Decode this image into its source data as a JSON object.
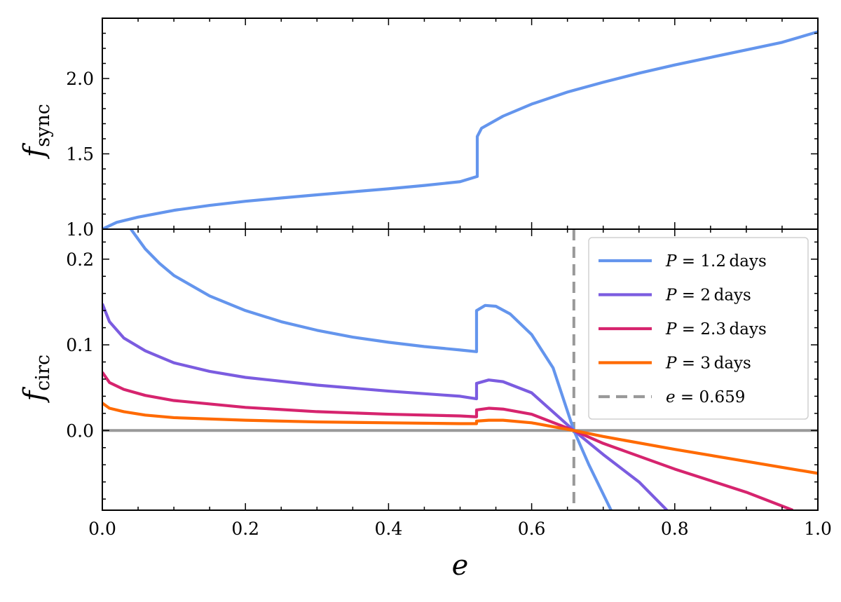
{
  "chart_data": [
    {
      "panel": "top",
      "type": "line",
      "ylabel": "f",
      "ylabel_sub": "sync",
      "xlim": [
        0,
        1
      ],
      "ylim": [
        1.0,
        2.4
      ],
      "yticks": [
        {
          "v": 1.0,
          "label": "1.0"
        },
        {
          "v": 1.5,
          "label": "1.5"
        },
        {
          "v": 2.0,
          "label": "2.0"
        }
      ],
      "series": [
        {
          "color": "#6495ED",
          "points": [
            [
              0,
              1.0
            ],
            [
              0.02,
              1.045
            ],
            [
              0.05,
              1.08
            ],
            [
              0.1,
              1.125
            ],
            [
              0.15,
              1.158
            ],
            [
              0.2,
              1.185
            ],
            [
              0.25,
              1.207
            ],
            [
              0.3,
              1.228
            ],
            [
              0.35,
              1.248
            ],
            [
              0.4,
              1.268
            ],
            [
              0.45,
              1.29
            ],
            [
              0.5,
              1.315
            ],
            [
              0.524,
              1.35
            ],
            [
              0.524,
              1.615
            ],
            [
              0.53,
              1.67
            ],
            [
              0.56,
              1.75
            ],
            [
              0.6,
              1.83
            ],
            [
              0.65,
              1.91
            ],
            [
              0.7,
              1.975
            ],
            [
              0.75,
              2.035
            ],
            [
              0.8,
              2.09
            ],
            [
              0.85,
              2.14
            ],
            [
              0.9,
              2.19
            ],
            [
              0.95,
              2.24
            ],
            [
              1.0,
              2.31
            ]
          ]
        }
      ]
    },
    {
      "panel": "bottom",
      "type": "line",
      "xlabel": "e",
      "ylabel": "f",
      "ylabel_sub": "circ",
      "xlim": [
        0,
        1
      ],
      "ylim": [
        -0.093,
        0.235
      ],
      "xticks": [
        {
          "v": 0.0,
          "label": "0.0"
        },
        {
          "v": 0.2,
          "label": "0.2"
        },
        {
          "v": 0.4,
          "label": "0.4"
        },
        {
          "v": 0.6,
          "label": "0.6"
        },
        {
          "v": 0.8,
          "label": "0.8"
        },
        {
          "v": 1.0,
          "label": "1.0"
        }
      ],
      "yticks": [
        {
          "v": 0.0,
          "label": "0.0"
        },
        {
          "v": 0.1,
          "label": "0.1"
        },
        {
          "v": 0.2,
          "label": "0.2"
        }
      ],
      "hline": {
        "y": 0.0,
        "color": "#999999"
      },
      "vline": {
        "x": 0.659,
        "color": "#999999",
        "dashed": true
      },
      "legend_position": "top-right",
      "legend": [
        {
          "var": "P",
          "value": "1.2",
          "unit": "days",
          "color": "#6495ED",
          "style": "solid"
        },
        {
          "var": "P",
          "value": "2",
          "unit": "days",
          "color": "#7B5CE0",
          "style": "solid"
        },
        {
          "var": "P",
          "value": "2.3",
          "unit": "days",
          "color": "#D6246E",
          "style": "solid"
        },
        {
          "var": "P",
          "value": "3",
          "unit": "days",
          "color": "#FF6A00",
          "style": "solid"
        },
        {
          "var": "e",
          "value": "0.659",
          "unit": "",
          "color": "#999999",
          "style": "dashed"
        }
      ],
      "series": [
        {
          "color": "#6495ED",
          "points": [
            [
              0.04,
              0.235
            ],
            [
              0.06,
              0.212
            ],
            [
              0.08,
              0.195
            ],
            [
              0.1,
              0.181
            ],
            [
              0.15,
              0.157
            ],
            [
              0.2,
              0.14
            ],
            [
              0.25,
              0.127
            ],
            [
              0.3,
              0.117
            ],
            [
              0.35,
              0.109
            ],
            [
              0.4,
              0.103
            ],
            [
              0.45,
              0.098
            ],
            [
              0.5,
              0.094
            ],
            [
              0.523,
              0.092
            ],
            [
              0.523,
              0.14
            ],
            [
              0.535,
              0.146
            ],
            [
              0.55,
              0.145
            ],
            [
              0.57,
              0.136
            ],
            [
              0.6,
              0.112
            ],
            [
              0.63,
              0.073
            ],
            [
              0.659,
              0.0
            ],
            [
              0.68,
              -0.04
            ],
            [
              0.711,
              -0.093
            ]
          ]
        },
        {
          "color": "#7B5CE0",
          "points": [
            [
              0,
              0.148
            ],
            [
              0.01,
              0.127
            ],
            [
              0.03,
              0.108
            ],
            [
              0.06,
              0.093
            ],
            [
              0.1,
              0.079
            ],
            [
              0.15,
              0.069
            ],
            [
              0.2,
              0.062
            ],
            [
              0.3,
              0.053
            ],
            [
              0.4,
              0.046
            ],
            [
              0.5,
              0.04
            ],
            [
              0.523,
              0.037
            ],
            [
              0.523,
              0.055
            ],
            [
              0.54,
              0.059
            ],
            [
              0.56,
              0.057
            ],
            [
              0.6,
              0.044
            ],
            [
              0.659,
              0.0
            ],
            [
              0.7,
              -0.028
            ],
            [
              0.75,
              -0.06
            ],
            [
              0.789,
              -0.093
            ]
          ]
        },
        {
          "color": "#D6246E",
          "points": [
            [
              0,
              0.068
            ],
            [
              0.01,
              0.056
            ],
            [
              0.03,
              0.048
            ],
            [
              0.06,
              0.041
            ],
            [
              0.1,
              0.035
            ],
            [
              0.2,
              0.027
            ],
            [
              0.3,
              0.022
            ],
            [
              0.4,
              0.019
            ],
            [
              0.5,
              0.017
            ],
            [
              0.523,
              0.016
            ],
            [
              0.523,
              0.024
            ],
            [
              0.54,
              0.026
            ],
            [
              0.56,
              0.025
            ],
            [
              0.6,
              0.019
            ],
            [
              0.659,
              0.0
            ],
            [
              0.7,
              -0.015
            ],
            [
              0.8,
              -0.045
            ],
            [
              0.9,
              -0.072
            ],
            [
              0.965,
              -0.093
            ]
          ]
        },
        {
          "color": "#FF6A00",
          "points": [
            [
              0,
              0.032
            ],
            [
              0.01,
              0.026
            ],
            [
              0.03,
              0.022
            ],
            [
              0.06,
              0.018
            ],
            [
              0.1,
              0.015
            ],
            [
              0.2,
              0.012
            ],
            [
              0.3,
              0.01
            ],
            [
              0.4,
              0.009
            ],
            [
              0.5,
              0.008
            ],
            [
              0.523,
              0.008
            ],
            [
              0.523,
              0.011
            ],
            [
              0.54,
              0.012
            ],
            [
              0.56,
              0.012
            ],
            [
              0.6,
              0.009
            ],
            [
              0.659,
              0.0
            ],
            [
              0.7,
              -0.007
            ],
            [
              0.8,
              -0.022
            ],
            [
              0.9,
              -0.036
            ],
            [
              1.0,
              -0.05
            ]
          ]
        }
      ]
    }
  ]
}
